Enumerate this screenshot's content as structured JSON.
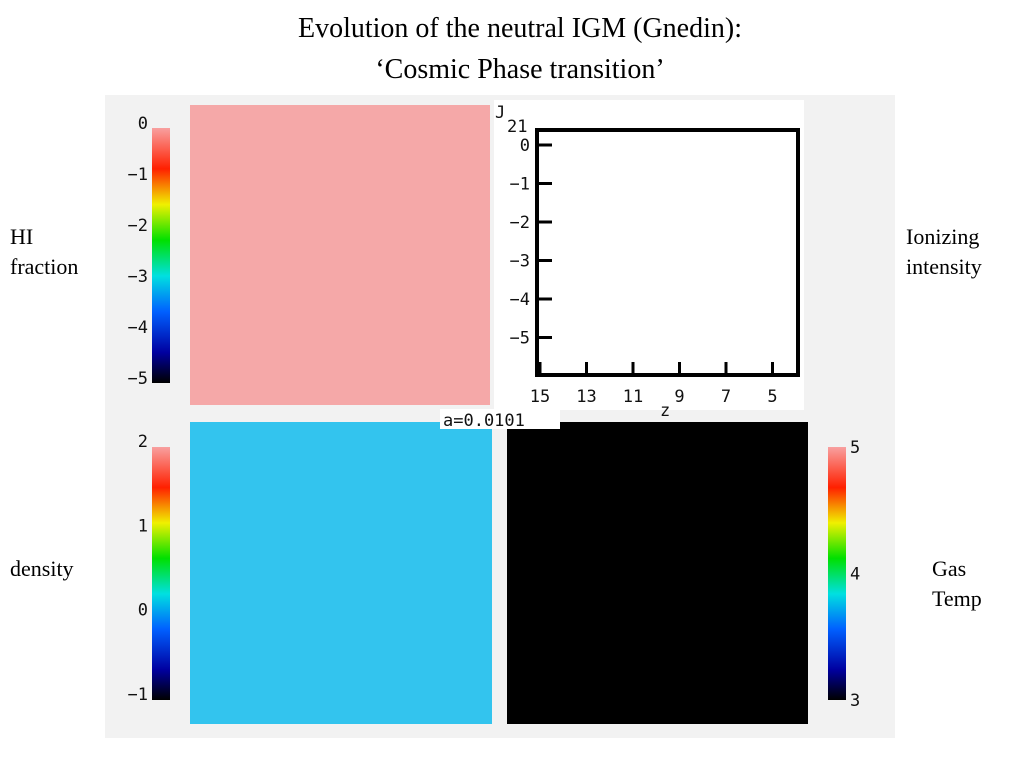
{
  "title": [
    "Evolution of the neutral IGM  (Gnedin):",
    "‘Cosmic Phase transition’"
  ],
  "side_labels": {
    "hi_fraction": [
      "HI",
      "fraction"
    ],
    "ionizing_intensity": [
      "Ionizing",
      "intensity"
    ],
    "density": [
      "density"
    ],
    "gas_temp": [
      "Gas",
      "Temp"
    ]
  },
  "panels": {
    "hi_fraction": {
      "colorbar_ticks": [
        "0",
        "−1",
        "−2",
        "−3",
        "−4",
        "−5"
      ]
    },
    "j21": {
      "ylabel": "J",
      "ylabel_sub": "21",
      "yticks": [
        "0",
        "−1",
        "−2",
        "−3",
        "−4",
        "−5"
      ],
      "xticks": [
        15,
        13,
        11,
        9,
        7,
        5
      ],
      "xlabel": "z"
    },
    "density": {
      "colorbar_ticks": [
        2,
        1,
        0,
        "−1"
      ]
    },
    "gas_temp": {
      "colorbar_ticks": [
        5,
        4,
        3
      ]
    },
    "scale_factor": "a=0.0101"
  }
}
